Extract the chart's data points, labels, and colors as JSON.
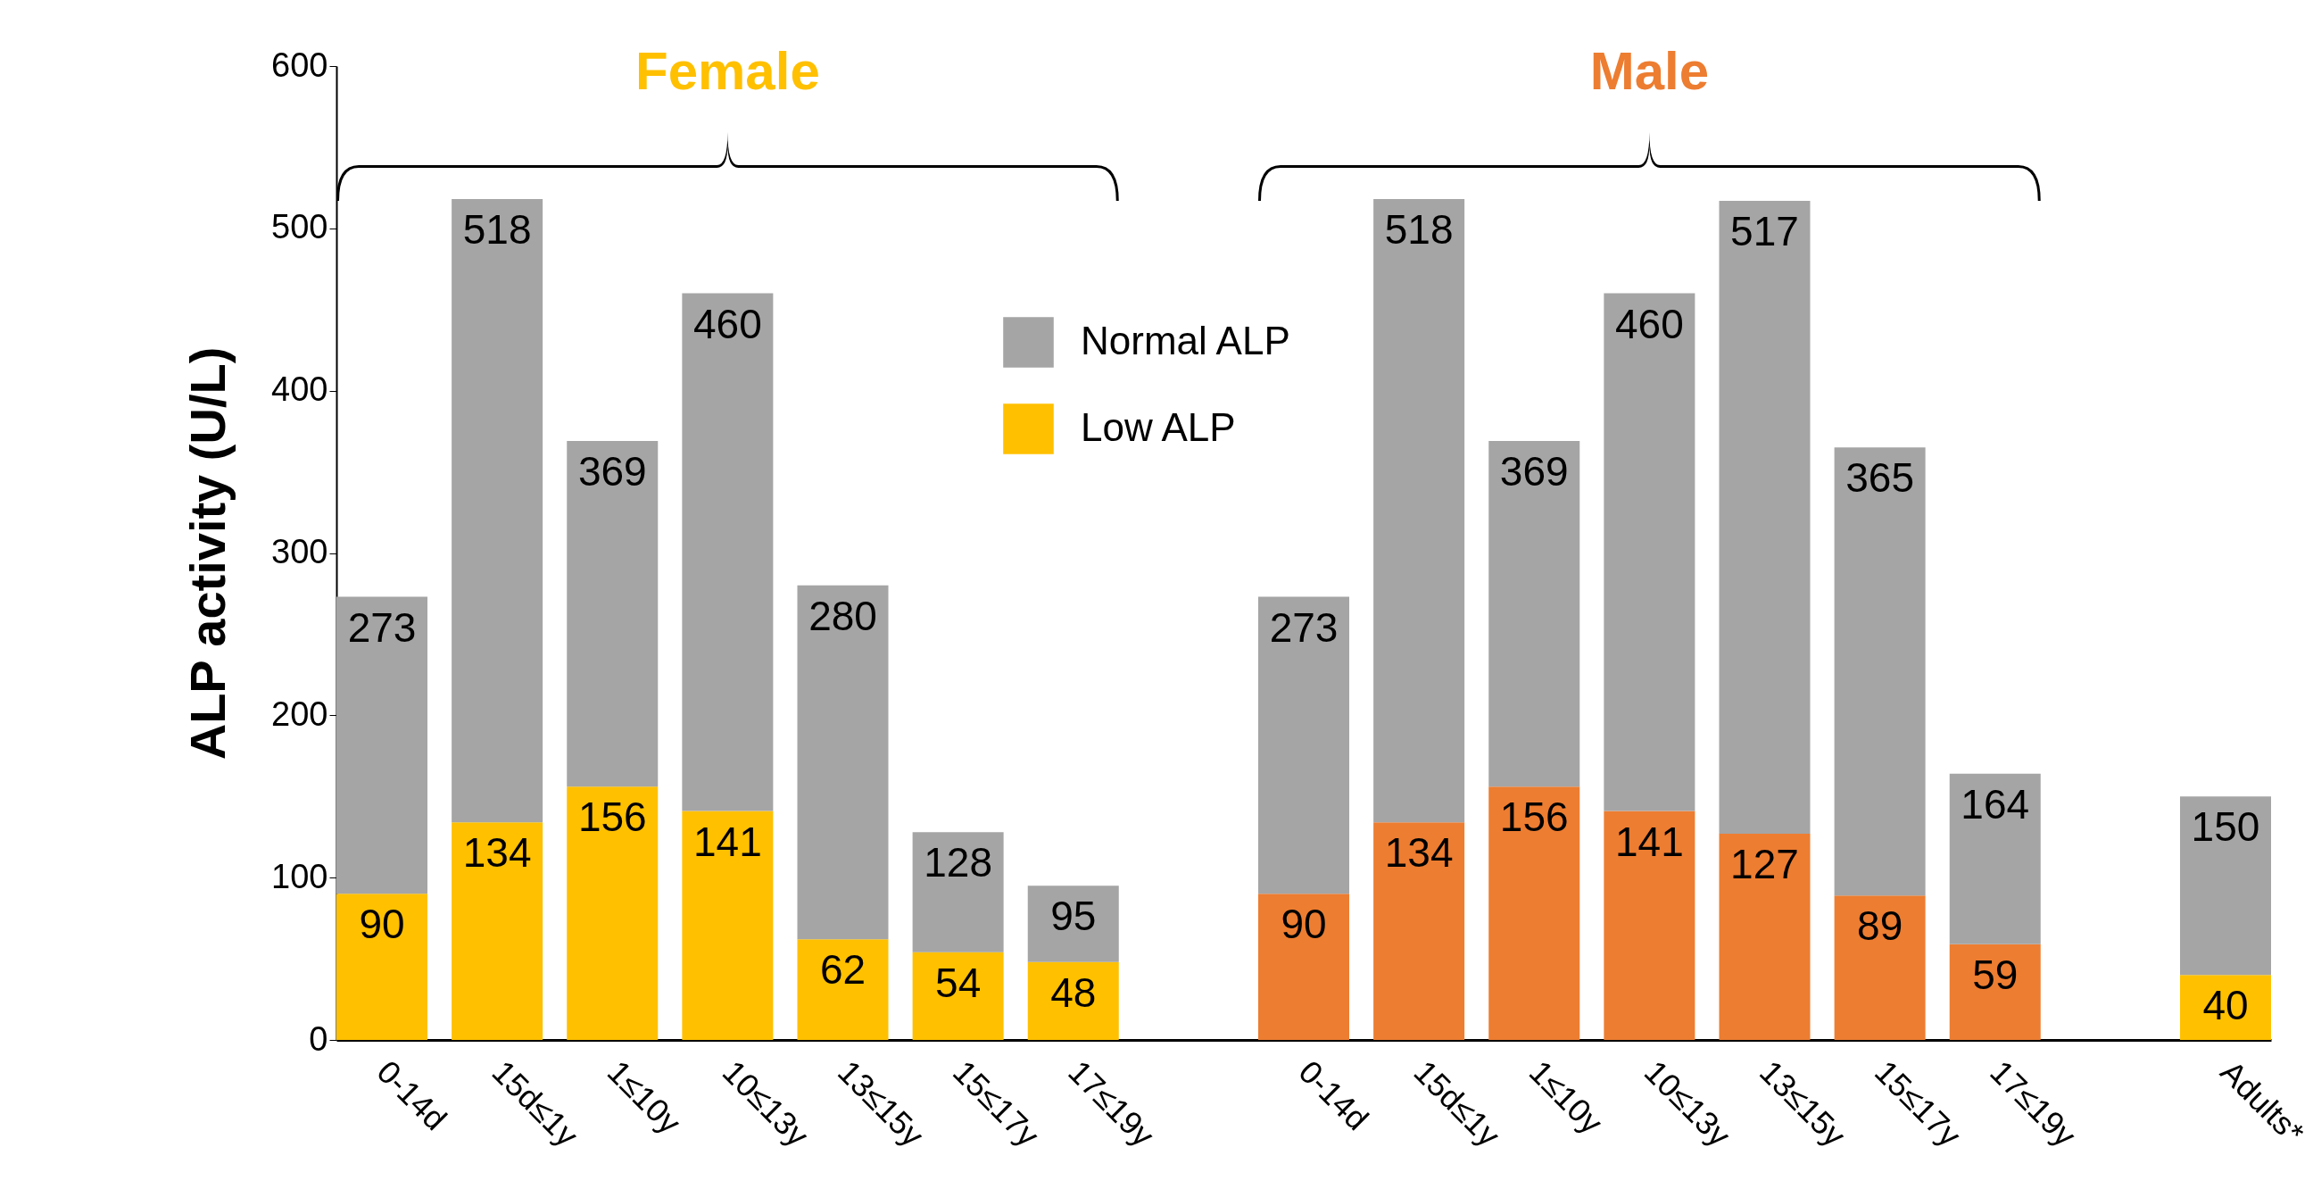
{
  "chart_data": {
    "type": "bar",
    "ylabel": "ALP activity (U/L)",
    "annotations": [
      "Female",
      "Male"
    ],
    "categories": [
      "0-14d",
      "15d≤1y",
      "1≤10y",
      "10≤13y",
      "13≤15y",
      "15≤17y",
      "17≤19y",
      null,
      "0-14d",
      "15d≤1y",
      "1≤10y",
      "10≤13y",
      "13≤15y",
      "15≤17y",
      "17≤19y",
      null,
      "Adults*"
    ],
    "stacked": true,
    "series": [
      {
        "name": "Low ALP",
        "colors": [
          "#ffc000",
          "#ffc000",
          "#ffc000",
          "#ffc000",
          "#ffc000",
          "#ffc000",
          "#ffc000",
          null,
          "#ed7d31",
          "#ed7d31",
          "#ed7d31",
          "#ed7d31",
          "#ed7d31",
          "#ed7d31",
          "#ed7d31",
          null,
          "#ffc000"
        ],
        "values": [
          90,
          134,
          156,
          141,
          62,
          54,
          48,
          null,
          90,
          134,
          156,
          141,
          127,
          89,
          59,
          null,
          40
        ],
        "value_labels": [
          "90",
          "134",
          "156",
          "141",
          "62",
          "54",
          "48",
          null,
          "90",
          "134",
          "156",
          "141",
          "127",
          "89",
          "59",
          null,
          "40"
        ]
      },
      {
        "name": "Normal ALP",
        "color": "#a5a5a5",
        "values": [
          183,
          384,
          213,
          319,
          218,
          74,
          47,
          null,
          183,
          384,
          213,
          319,
          390,
          276,
          105,
          null,
          110
        ]
      }
    ],
    "totals": [
      "273",
      "518",
      "369",
      "460",
      "280",
      "128",
      "95",
      null,
      "273",
      "518",
      "369",
      "460",
      "517",
      "365",
      "164",
      null,
      "150"
    ],
    "ylim": [
      0,
      600
    ],
    "yticks": [
      0,
      100,
      200,
      300,
      400,
      500,
      600
    ],
    "legend": "top"
  }
}
